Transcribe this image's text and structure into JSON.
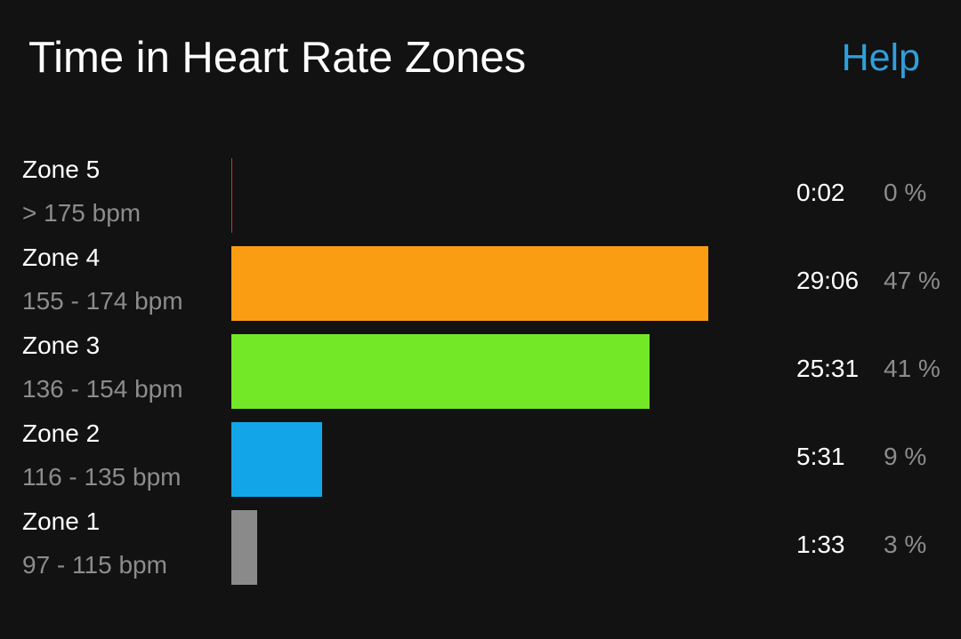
{
  "header": {
    "title": "Time in Heart Rate Zones",
    "help_label": "Help",
    "help_color": "#2f9fdb"
  },
  "zones": [
    {
      "name": "Zone 5",
      "range": "> 175 bpm",
      "time": "0:02",
      "percent": "0 %",
      "fraction": 0.0,
      "color": "#d32f2f"
    },
    {
      "name": "Zone 4",
      "range": "155 - 174 bpm",
      "time": "29:06",
      "percent": "47 %",
      "fraction": 1.0,
      "color": "#fb9d12"
    },
    {
      "name": "Zone 3",
      "range": "136 - 154 bpm",
      "time": "25:31",
      "percent": "41 %",
      "fraction": 0.876,
      "color": "#73e826"
    },
    {
      "name": "Zone 2",
      "range": "116 - 135 bpm",
      "time": "5:31",
      "percent": "9 %",
      "fraction": 0.19,
      "color": "#12a6e9"
    },
    {
      "name": "Zone 1",
      "range": "97 - 115 bpm",
      "time": "1:33",
      "percent": "3 %",
      "fraction": 0.054,
      "color": "#8a8a8a"
    }
  ]
}
